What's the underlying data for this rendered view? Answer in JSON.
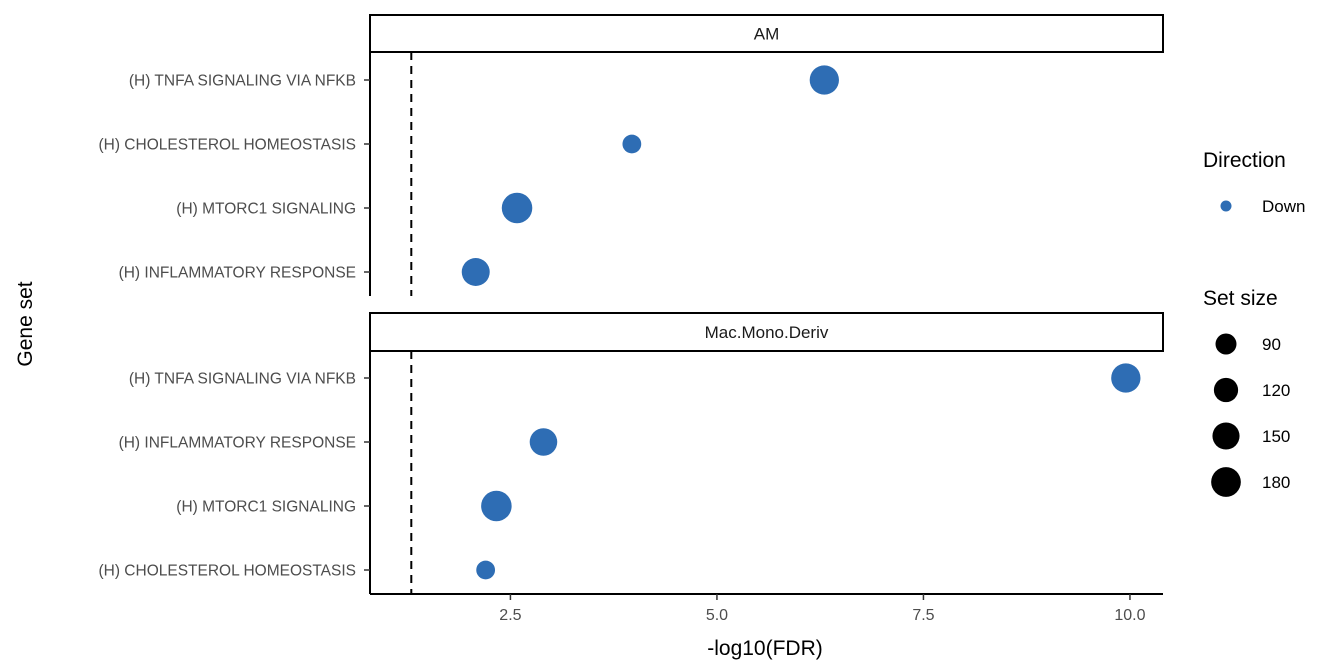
{
  "chart_data": {
    "type": "scatter",
    "xlabel": "-log10(FDR)",
    "ylabel": "Gene set",
    "xlim": [
      0.8,
      10.4
    ],
    "x_ticks": [
      2.5,
      5.0,
      7.5,
      10.0
    ],
    "x_tick_labels": [
      "2.5",
      "5.0",
      "7.5",
      "10.0"
    ],
    "reference_line_x": 1.3,
    "point_color": "#2E6DB4",
    "facets": [
      {
        "title": "AM",
        "categories": [
          "(H) TNFA SIGNALING VIA NFKB",
          "(H) CHOLESTEROL HOMEOSTASIS",
          "(H) MTORC1 SIGNALING",
          "(H) INFLAMMATORY RESPONSE"
        ],
        "points": [
          {
            "category": "(H) TNFA SIGNALING VIA NFKB",
            "x": 6.3,
            "size": 175,
            "direction": "Down"
          },
          {
            "category": "(H) CHOLESTEROL HOMEOSTASIS",
            "x": 3.97,
            "size": 72,
            "direction": "Down"
          },
          {
            "category": "(H) MTORC1 SIGNALING",
            "x": 2.58,
            "size": 190,
            "direction": "Down"
          },
          {
            "category": "(H) INFLAMMATORY RESPONSE",
            "x": 2.08,
            "size": 160,
            "direction": "Down"
          }
        ]
      },
      {
        "title": "Mac.Mono.Deriv",
        "categories": [
          "(H) TNFA SIGNALING VIA NFKB",
          "(H) INFLAMMATORY RESPONSE",
          "(H) MTORC1 SIGNALING",
          "(H) CHOLESTEROL HOMEOSTASIS"
        ],
        "points": [
          {
            "category": "(H) TNFA SIGNALING VIA NFKB",
            "x": 9.95,
            "size": 175,
            "direction": "Down"
          },
          {
            "category": "(H) INFLAMMATORY RESPONSE",
            "x": 2.9,
            "size": 155,
            "direction": "Down"
          },
          {
            "category": "(H) MTORC1 SIGNALING",
            "x": 2.33,
            "size": 190,
            "direction": "Down"
          },
          {
            "category": "(H) CHOLESTEROL HOMEOSTASIS",
            "x": 2.2,
            "size": 72,
            "direction": "Down"
          }
        ]
      }
    ],
    "legend": {
      "color_title": "Direction",
      "color_items": [
        {
          "label": "Down",
          "color": "#2E6DB4"
        }
      ],
      "size_title": "Set size",
      "size_items": [
        {
          "label": "90",
          "value": 90
        },
        {
          "label": "120",
          "value": 120
        },
        {
          "label": "150",
          "value": 150
        },
        {
          "label": "180",
          "value": 180
        }
      ],
      "placement": "right"
    },
    "grid": false
  }
}
